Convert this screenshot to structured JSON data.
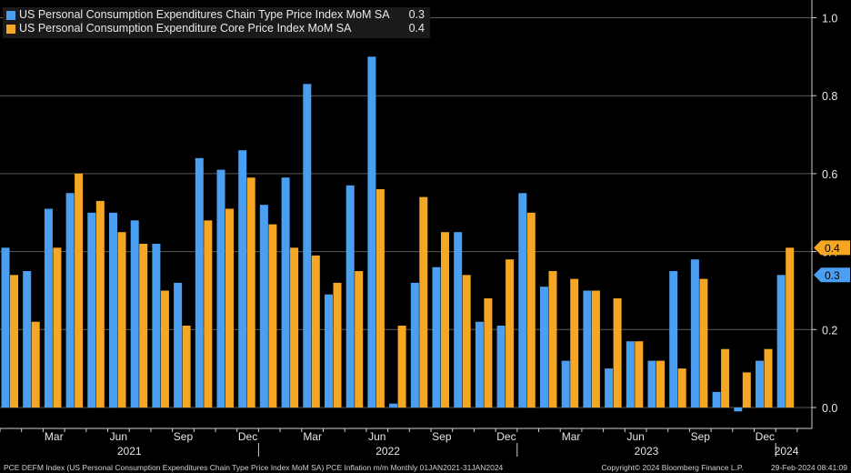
{
  "chart_data": {
    "type": "bar",
    "title": "",
    "xlabel": "",
    "ylabel": "",
    "ylim": [
      -0.05,
      1.02
    ],
    "yticks": [
      0.0,
      0.2,
      0.4,
      0.6,
      0.8,
      1.0
    ],
    "ytick_labels": [
      "0.0",
      "0.2",
      "0.4",
      "0.6",
      "0.8",
      "1.0"
    ],
    "categories": [
      "2021-01",
      "2021-02",
      "2021-03",
      "2021-04",
      "2021-05",
      "2021-06",
      "2021-07",
      "2021-08",
      "2021-09",
      "2021-10",
      "2021-11",
      "2021-12",
      "2022-01",
      "2022-02",
      "2022-03",
      "2022-04",
      "2022-05",
      "2022-06",
      "2022-07",
      "2022-08",
      "2022-09",
      "2022-10",
      "2022-11",
      "2022-12",
      "2023-01",
      "2023-02",
      "2023-03",
      "2023-04",
      "2023-05",
      "2023-06",
      "2023-07",
      "2023-08",
      "2023-09",
      "2023-10",
      "2023-11",
      "2023-12",
      "2024-01"
    ],
    "series": [
      {
        "name": "US Personal Consumption Expenditures Chain Type Price Index MoM SA",
        "last": "0.3",
        "color": "#4a9ff0",
        "values": [
          0.41,
          0.35,
          0.51,
          0.55,
          0.5,
          0.5,
          0.48,
          0.42,
          0.32,
          0.64,
          0.61,
          0.66,
          0.52,
          0.59,
          0.83,
          0.29,
          0.57,
          0.9,
          0.01,
          0.32,
          0.36,
          0.45,
          0.22,
          0.21,
          0.55,
          0.31,
          0.12,
          0.3,
          0.1,
          0.17,
          0.12,
          0.35,
          0.38,
          0.04,
          -0.01,
          0.12,
          0.34
        ]
      },
      {
        "name": "US Personal Consumption Expenditure Core Price Index MoM SA",
        "last": "0.4",
        "color": "#f5a623",
        "values": [
          0.34,
          0.22,
          0.41,
          0.6,
          0.53,
          0.45,
          0.42,
          0.3,
          0.21,
          0.48,
          0.51,
          0.59,
          0.47,
          0.41,
          0.39,
          0.32,
          0.35,
          0.56,
          0.21,
          0.54,
          0.45,
          0.34,
          0.28,
          0.38,
          0.5,
          0.35,
          0.33,
          0.3,
          0.28,
          0.17,
          0.12,
          0.1,
          0.33,
          0.15,
          0.09,
          0.15,
          0.41
        ]
      }
    ],
    "x_month_labels": [
      {
        "index": 2,
        "label": "Mar"
      },
      {
        "index": 5,
        "label": "Jun"
      },
      {
        "index": 8,
        "label": "Sep"
      },
      {
        "index": 11,
        "label": "Dec"
      },
      {
        "index": 14,
        "label": "Mar"
      },
      {
        "index": 17,
        "label": "Jun"
      },
      {
        "index": 20,
        "label": "Sep"
      },
      {
        "index": 23,
        "label": "Dec"
      },
      {
        "index": 26,
        "label": "Mar"
      },
      {
        "index": 29,
        "label": "Jun"
      },
      {
        "index": 32,
        "label": "Sep"
      },
      {
        "index": 35,
        "label": "Dec"
      }
    ],
    "x_year_labels": [
      {
        "start": 0,
        "end": 11,
        "label": "2021"
      },
      {
        "start": 12,
        "end": 23,
        "label": "2022"
      },
      {
        "start": 24,
        "end": 35,
        "label": "2023"
      },
      {
        "start": 36,
        "end": 36,
        "label": "2024"
      }
    ],
    "grid": true,
    "legend": "top-left"
  },
  "legend": {
    "items": [
      {
        "name": "US Personal Consumption Expenditures Chain Type Price Index MoM SA",
        "value": "0.3"
      },
      {
        "name": "US Personal Consumption Expenditure Core Price Index MoM SA",
        "value": "0.4"
      }
    ]
  },
  "footer": {
    "left": "PCE DEFM Index (US Personal Consumption Expenditures Chain Type Price Index MoM SA) PCE Inflation m/m  Monthly 01JAN2021-31JAN2024",
    "copyright": "Copyright© 2024 Bloomberg Finance L.P.",
    "timestamp": "29-Feb-2024 08:41:09"
  }
}
